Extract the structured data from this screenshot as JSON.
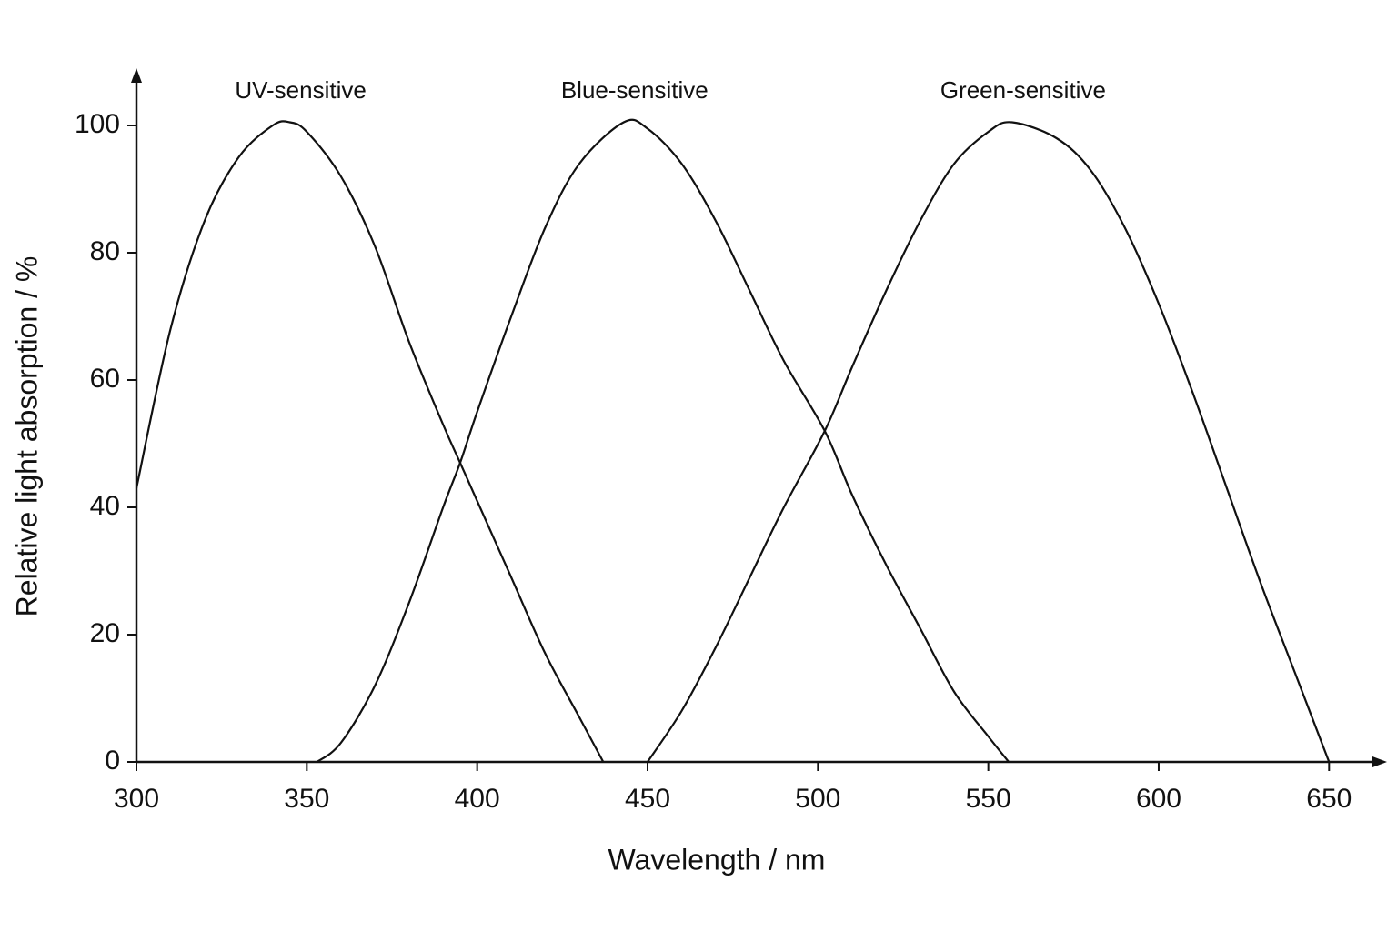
{
  "chart_data": {
    "type": "line",
    "x_label": "Wavelength / nm",
    "y_label": "Relative light absorption / %",
    "xlim": [
      300,
      667
    ],
    "ylim": [
      0,
      109
    ],
    "xticks": [
      300,
      350,
      400,
      450,
      500,
      550,
      600,
      650
    ],
    "yticks": [
      0,
      20,
      40,
      60,
      80,
      100
    ],
    "grid": false,
    "series": [
      {
        "name": "UV-sensitive",
        "color": "#111111",
        "x": [
          300,
          310,
          320,
          330,
          340,
          345,
          350,
          360,
          370,
          380,
          390,
          395,
          400,
          410,
          420,
          430,
          437
        ],
        "values": [
          43,
          68,
          85,
          95,
          100,
          100.5,
          99,
          92,
          81,
          66,
          53,
          47,
          41,
          29,
          17,
          7,
          0
        ]
      },
      {
        "name": "Blue-sensitive",
        "color": "#111111",
        "x": [
          353,
          360,
          370,
          380,
          390,
          395,
          400,
          410,
          420,
          430,
          443,
          450,
          460,
          470,
          480,
          490,
          502,
          510,
          520,
          530,
          540,
          550,
          556
        ],
        "values": [
          0,
          3,
          12,
          25,
          40,
          47,
          55,
          70,
          84,
          94,
          100.5,
          99.5,
          94,
          85,
          74,
          63,
          52,
          42,
          31,
          21,
          11,
          4,
          0
        ]
      },
      {
        "name": "Green-sensitive",
        "color": "#111111",
        "x": [
          450,
          460,
          470,
          480,
          490,
          502,
          510,
          520,
          530,
          540,
          550,
          557,
          570,
          580,
          590,
          600,
          610,
          620,
          630,
          640,
          650
        ],
        "values": [
          0,
          8,
          18,
          29,
          40,
          52,
          62,
          74,
          85,
          94,
          99,
          100.5,
          98,
          93,
          84,
          72,
          58,
          43,
          28,
          14,
          0
        ]
      }
    ]
  }
}
